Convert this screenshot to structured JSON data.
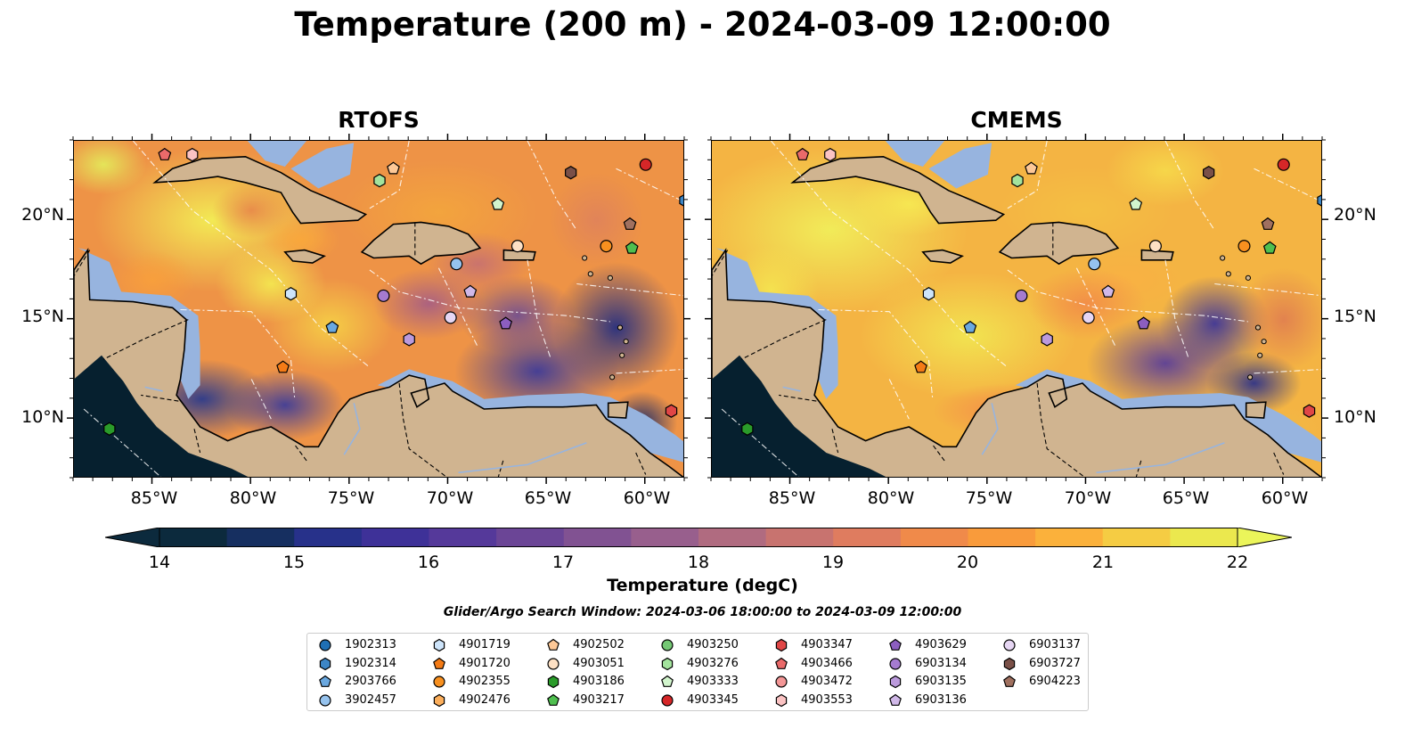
{
  "figure": {
    "title": "Temperature (200 m) - 2024-03-09 12:00:00",
    "panels": [
      {
        "title": "RTOFS"
      },
      {
        "title": "CMEMS"
      }
    ],
    "x_tick_labels": [
      "85°W",
      "80°W",
      "75°W",
      "70°W",
      "65°W",
      "60°W"
    ],
    "y_tick_labels": [
      "20°N",
      "15°N",
      "10°N"
    ],
    "lon_range": [
      -89,
      -58
    ],
    "lat_range": [
      7,
      24
    ]
  },
  "colorbar": {
    "label": "Temperature (degC)",
    "ticks": [
      "14",
      "15",
      "16",
      "17",
      "18",
      "19",
      "20",
      "21",
      "22"
    ],
    "colors": [
      "#0c2a3d",
      "#162f60",
      "#27318a",
      "#3e3198",
      "#55399a",
      "#6b4596",
      "#815292",
      "#985f8d",
      "#b06b80",
      "#c8736f",
      "#df7c5f",
      "#f08a4a",
      "#f99b3b",
      "#fbb13b",
      "#f5cc43",
      "#ebe84e"
    ],
    "extend_low": "#0c2a3d",
    "extend_high": "#ebf55a"
  },
  "search_window": "Glider/Argo Search Window: 2024-03-06 18:00:00 to 2024-03-09 12:00:00",
  "legend": {
    "items": [
      {
        "label": "1902313",
        "marker": "circle",
        "color": "#1f6fb4"
      },
      {
        "label": "1902314",
        "marker": "hexagon",
        "color": "#3d86c6"
      },
      {
        "label": "2903766",
        "marker": "pentagon",
        "color": "#6aa8e0"
      },
      {
        "label": "3902457",
        "marker": "circle",
        "color": "#96c3ee"
      },
      {
        "label": "4901719",
        "marker": "hexagon",
        "color": "#cde4fa"
      },
      {
        "label": "4901720",
        "marker": "pentagon",
        "color": "#f47b16"
      },
      {
        "label": "4902355",
        "marker": "circle",
        "color": "#f8901f"
      },
      {
        "label": "4902476",
        "marker": "hexagon",
        "color": "#fbae5b"
      },
      {
        "label": "4902502",
        "marker": "pentagon",
        "color": "#fdc897"
      },
      {
        "label": "4903051",
        "marker": "circle",
        "color": "#fde0c4"
      },
      {
        "label": "4903186",
        "marker": "hexagon",
        "color": "#2a9b2a"
      },
      {
        "label": "4903217",
        "marker": "pentagon",
        "color": "#4fbf4f"
      },
      {
        "label": "4903250",
        "marker": "circle",
        "color": "#74c874"
      },
      {
        "label": "4903276",
        "marker": "hexagon",
        "color": "#a3e39d"
      },
      {
        "label": "4903333",
        "marker": "pentagon",
        "color": "#d2f5cd"
      },
      {
        "label": "4903345",
        "marker": "circle",
        "color": "#d62728"
      },
      {
        "label": "4903347",
        "marker": "hexagon",
        "color": "#e04646"
      },
      {
        "label": "4903466",
        "marker": "pentagon",
        "color": "#ea6a6a"
      },
      {
        "label": "4903472",
        "marker": "circle",
        "color": "#f39696"
      },
      {
        "label": "4903553",
        "marker": "hexagon",
        "color": "#fbc3c3"
      },
      {
        "label": "4903629",
        "marker": "pentagon",
        "color": "#8c5ec0"
      },
      {
        "label": "6903134",
        "marker": "circle",
        "color": "#a57bd0"
      },
      {
        "label": "6903135",
        "marker": "hexagon",
        "color": "#bb9adc"
      },
      {
        "label": "6903136",
        "marker": "pentagon",
        "color": "#d0b8e8"
      },
      {
        "label": "6903137",
        "marker": "circle",
        "color": "#e6d6f3"
      },
      {
        "label": "6903727",
        "marker": "hexagon",
        "color": "#7a5048"
      },
      {
        "label": "6904223",
        "marker": "pentagon",
        "color": "#a0705f"
      }
    ]
  },
  "floats": [
    {
      "label": "4903466",
      "lon": -84.4,
      "lat": 23.3
    },
    {
      "label": "4903553",
      "lon": -83.0,
      "lat": 23.3
    },
    {
      "label": "4902502",
      "lon": -72.8,
      "lat": 22.6
    },
    {
      "label": "4903276",
      "lon": -73.5,
      "lat": 22.0
    },
    {
      "label": "6903727",
      "lon": -63.8,
      "lat": 22.4
    },
    {
      "label": "4903345",
      "lon": -60.0,
      "lat": 22.8
    },
    {
      "label": "4903333",
      "lon": -67.5,
      "lat": 20.8
    },
    {
      "label": "6904223",
      "lon": -60.8,
      "lat": 19.8
    },
    {
      "label": "4903051",
      "lon": -66.5,
      "lat": 18.7
    },
    {
      "label": "4902355",
      "lon": -62.0,
      "lat": 18.7
    },
    {
      "label": "4903217",
      "lon": -60.7,
      "lat": 18.6
    },
    {
      "label": "3902457",
      "lon": -69.6,
      "lat": 17.8
    },
    {
      "label": "4901719",
      "lon": -78.0,
      "lat": 16.3
    },
    {
      "label": "6903134",
      "lon": -73.3,
      "lat": 16.2
    },
    {
      "label": "6903136",
      "lon": -68.9,
      "lat": 16.4
    },
    {
      "label": "6903137",
      "lon": -69.9,
      "lat": 15.1
    },
    {
      "label": "4903629",
      "lon": -67.1,
      "lat": 14.8
    },
    {
      "label": "2903766",
      "lon": -75.9,
      "lat": 14.6
    },
    {
      "label": "6903135",
      "lon": -72.0,
      "lat": 14.0
    },
    {
      "label": "4901720",
      "lon": -78.4,
      "lat": 12.6
    },
    {
      "label": "4903186",
      "lon": -87.2,
      "lat": 9.5
    },
    {
      "label": "4903347",
      "lon": -58.7,
      "lat": 10.4
    },
    {
      "label": "1902314",
      "lon": -58.0,
      "lat": 21.0
    }
  ]
}
